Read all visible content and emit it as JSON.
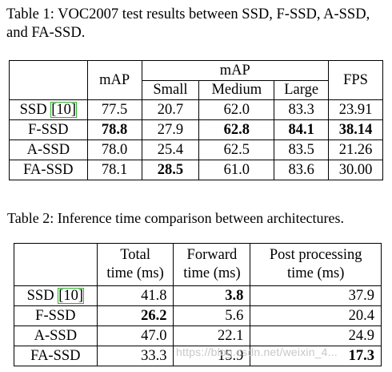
{
  "table1": {
    "caption": "Table 1: VOC2007 test results between SSD, F-SSD, A-SSD, and FA-SSD.",
    "headers": {
      "map": "mAP",
      "map_group": "mAP",
      "small": "Small",
      "medium": "Medium",
      "large": "Large",
      "fps": "FPS"
    },
    "rows": [
      {
        "name": "SSD ",
        "ref": "[10]",
        "map": "77.5",
        "small": "20.7",
        "medium": "62.0",
        "large": "83.3",
        "fps": "23.91"
      },
      {
        "name": "F-SSD",
        "map": "78.8",
        "small": "27.9",
        "medium": "62.8",
        "large": "84.1",
        "fps": "38.14"
      },
      {
        "name": "A-SSD",
        "map": "78.0",
        "small": "25.4",
        "medium": "62.5",
        "large": "83.5",
        "fps": "21.26"
      },
      {
        "name": "FA-SSD",
        "map": "78.1",
        "small": "28.5",
        "medium": "61.0",
        "large": "83.6",
        "fps": "30.00"
      }
    ]
  },
  "table2": {
    "caption": "Table 2: Inference time comparison between architectures.",
    "headers": {
      "total_line1": "Total",
      "total_line2": "time (ms)",
      "forward_line1": "Forward",
      "forward_line2": "time (ms)",
      "post_line1": "Post processing",
      "post_line2": "time (ms)"
    },
    "rows": [
      {
        "name": "SSD ",
        "ref": "[10]",
        "total": "41.8",
        "forward": "3.8",
        "post": "37.9"
      },
      {
        "name": "F-SSD",
        "total": "26.2",
        "forward": "5.6",
        "post": "20.4"
      },
      {
        "name": "A-SSD",
        "total": "47.0",
        "forward": "22.1",
        "post": "24.9"
      },
      {
        "name": "FA-SSD",
        "total": "33.3",
        "forward": "15.9",
        "post": "17.3"
      }
    ]
  },
  "watermark": "https://blog.csdn.net/weixin_4..."
}
